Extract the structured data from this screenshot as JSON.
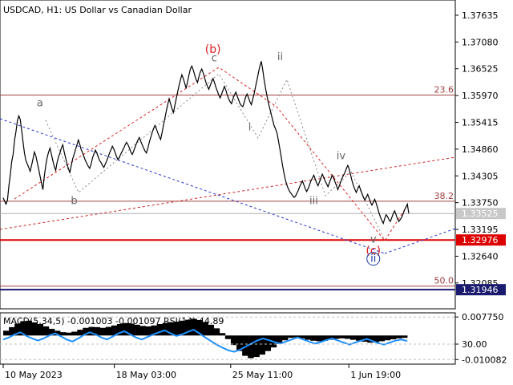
{
  "header": {
    "symbol": "USDCAD",
    "timeframe": "H1:",
    "description": "US Dollar vs Canadian Dollar"
  },
  "chart_data": {
    "type": "line",
    "title": "USDCAD, H1:  US Dollar vs Canadian Dollar",
    "price_axis": {
      "range": [
        1.3155,
        1.3795
      ],
      "ticks": [
        "1.37635",
        "1.37080",
        "1.36525",
        "1.35970",
        "1.35415",
        "1.34860",
        "1.34305",
        "1.33750",
        "1.33195",
        "1.32640",
        "1.32085"
      ],
      "tick_values": [
        1.37635,
        1.3708,
        1.36525,
        1.3597,
        1.35415,
        1.3486,
        1.34305,
        1.3375,
        1.33195,
        1.3264,
        1.32085
      ]
    },
    "time_axis": {
      "ticks": [
        "10 May 2023",
        "18 May 03:00",
        "25 May 11:00",
        "1 Jun 19:00"
      ],
      "tick_index": [
        0,
        63,
        129,
        196
      ]
    },
    "price_series": {
      "name": "USDCAD",
      "color": "#000000",
      "values": [
        1.3385,
        1.3378,
        1.3372,
        1.338,
        1.341,
        1.3432,
        1.346,
        1.3475,
        1.3505,
        1.3522,
        1.3545,
        1.3555,
        1.3548,
        1.3525,
        1.35,
        1.3478,
        1.3462,
        1.3455,
        1.3448,
        1.344,
        1.3452,
        1.3466,
        1.348,
        1.3472,
        1.3458,
        1.3445,
        1.343,
        1.3415,
        1.3402,
        1.343,
        1.3452,
        1.3468,
        1.348,
        1.3488,
        1.3475,
        1.3462,
        1.345,
        1.3442,
        1.3458,
        1.347,
        1.3478,
        1.3488,
        1.3495,
        1.348,
        1.3468,
        1.3455,
        1.3445,
        1.3438,
        1.3452,
        1.3466,
        1.3475,
        1.3485,
        1.3495,
        1.3505,
        1.3496,
        1.3485,
        1.3478,
        1.347,
        1.3462,
        1.3456,
        1.345,
        1.3446,
        1.3455,
        1.3468,
        1.3476,
        1.3484,
        1.3478,
        1.347,
        1.3462,
        1.3458,
        1.3452,
        1.3448,
        1.3455,
        1.3462,
        1.347,
        1.3478,
        1.3485,
        1.3492,
        1.3486,
        1.3478,
        1.347,
        1.3464,
        1.347,
        1.3476,
        1.3482,
        1.3488,
        1.3495,
        1.35,
        1.3495,
        1.3488,
        1.348,
        1.3475,
        1.3482,
        1.349,
        1.3498,
        1.3505,
        1.351,
        1.3502,
        1.3495,
        1.3488,
        1.3482,
        1.3478,
        1.3488,
        1.35,
        1.351,
        1.352,
        1.3528,
        1.3535,
        1.3528,
        1.352,
        1.3512,
        1.3506,
        1.352,
        1.3535,
        1.355,
        1.3565,
        1.3578,
        1.359,
        1.358,
        1.357,
        1.3562,
        1.3576,
        1.359,
        1.3604,
        1.3618,
        1.363,
        1.364,
        1.3632,
        1.3622,
        1.3612,
        1.3626,
        1.364,
        1.3652,
        1.3658,
        1.365,
        1.364,
        1.363,
        1.3624,
        1.3636,
        1.3646,
        1.3652,
        1.3644,
        1.3634,
        1.3624,
        1.3616,
        1.361,
        1.3618,
        1.3626,
        1.3632,
        1.3624,
        1.3614,
        1.3606,
        1.3598,
        1.3592,
        1.36,
        1.3608,
        1.3616,
        1.3608,
        1.3598,
        1.359,
        1.3584,
        1.358,
        1.359,
        1.3598,
        1.3604,
        1.3596,
        1.3588,
        1.358,
        1.3576,
        1.3574,
        1.3584,
        1.3594,
        1.36,
        1.3592,
        1.3584,
        1.3578,
        1.359,
        1.3602,
        1.3616,
        1.363,
        1.3645,
        1.3658,
        1.3668,
        1.365,
        1.363,
        1.3612,
        1.3596,
        1.3582,
        1.357,
        1.3558,
        1.3546,
        1.3535,
        1.3528,
        1.352,
        1.3505,
        1.3488,
        1.347,
        1.3452,
        1.3436,
        1.3422,
        1.3412,
        1.3404,
        1.3398,
        1.3394,
        1.339,
        1.3386,
        1.3388,
        1.3394,
        1.34,
        1.3408,
        1.3414,
        1.342,
        1.3412,
        1.3404,
        1.3398,
        1.3404,
        1.3412,
        1.342,
        1.3426,
        1.3432,
        1.3424,
        1.3416,
        1.341,
        1.3418,
        1.3426,
        1.3434,
        1.3428,
        1.342,
        1.3414,
        1.3408,
        1.3416,
        1.3424,
        1.3432,
        1.3426,
        1.3418,
        1.341,
        1.3402,
        1.341,
        1.3418,
        1.3426,
        1.3432,
        1.3438,
        1.3446,
        1.3452,
        1.3444,
        1.3432,
        1.342,
        1.341,
        1.3402,
        1.3396,
        1.3404,
        1.341,
        1.3402,
        1.3394,
        1.3386,
        1.338,
        1.3386,
        1.3392,
        1.3384,
        1.3376,
        1.337,
        1.3376,
        1.3382,
        1.3374,
        1.3364,
        1.3354,
        1.3345,
        1.3338,
        1.3332,
        1.3342,
        1.335,
        1.3346,
        1.334,
        1.3336,
        1.3344,
        1.3352,
        1.3358,
        1.335,
        1.3342,
        1.3336,
        1.334,
        1.3345,
        1.3352,
        1.336,
        1.3366,
        1.3372,
        1.33525
      ]
    },
    "current_price": {
      "value": 1.33525,
      "label": "1.33525"
    },
    "levels": [
      {
        "label": "1.32976",
        "value": 1.32976,
        "color": "#dd0000"
      },
      {
        "label": "1.31946",
        "value": 1.31946,
        "color": "#1a1a6e"
      }
    ],
    "fib_levels": [
      {
        "label": "23.6",
        "value": 1.3598
      },
      {
        "label": "38.2",
        "value": 1.3378
      },
      {
        "label": "50.0",
        "value": 1.3202
      }
    ],
    "wave_labels": [
      {
        "text": "a",
        "index": 58,
        "price": 1.3575,
        "color": "#666666"
      },
      {
        "text": "b",
        "index": 112,
        "price": 1.3372,
        "color": "#666666"
      },
      {
        "text": "(b)",
        "index": 331,
        "price": 1.3685,
        "color": "#dd2222"
      },
      {
        "text": "c",
        "index": 333,
        "price": 1.3668,
        "color": "#666666"
      },
      {
        "text": "ii",
        "index": 437,
        "price": 1.367,
        "color": "#666666"
      },
      {
        "text": "i",
        "index": 389,
        "price": 1.3525,
        "color": "#666666"
      },
      {
        "text": "iv",
        "index": 533,
        "price": 1.3465,
        "color": "#666666"
      },
      {
        "text": "iii",
        "index": 490,
        "price": 1.3372,
        "color": "#666666"
      },
      {
        "text": "v",
        "index": 584,
        "price": 1.3292,
        "color": "#666666"
      },
      {
        "text": "(c)",
        "index": 584,
        "price": 1.3268,
        "color": "#dd2222"
      },
      {
        "text": "ii",
        "index": 584,
        "price": 1.3252,
        "color": "#1a3aa0"
      }
    ],
    "macd": {
      "label": "MACD(5,34,5) -0.001003 -0.001097 RSI(14) 44.89",
      "axis_range": [
        -0.012,
        0.0095
      ],
      "ticks": [
        "0.007750",
        "30.00",
        "-0.010082"
      ],
      "tick_values": [
        0.00775,
        -0.0036,
        -0.010082
      ],
      "histogram": [
        0.002,
        0.0035,
        0.005,
        0.006,
        0.0062,
        0.0055,
        0.0048,
        0.0038,
        0.0028,
        0.002,
        0.0014,
        0.0012,
        0.0016,
        0.0024,
        0.0032,
        0.0036,
        0.0035,
        0.0032,
        0.0036,
        0.0042,
        0.0048,
        0.0052,
        0.005,
        0.0045,
        0.004,
        0.0038,
        0.0042,
        0.0048,
        0.0053,
        0.0056,
        0.0058,
        0.0062,
        0.0066,
        0.007,
        0.0065,
        0.0055,
        0.0045,
        0.003,
        0.001,
        -0.0015,
        -0.004,
        -0.0065,
        -0.0085,
        -0.0095,
        -0.009,
        -0.008,
        -0.0065,
        -0.005,
        -0.0035,
        -0.002,
        -0.001,
        -0.0008,
        -0.0012,
        -0.0018,
        -0.0022,
        -0.0024,
        -0.0022,
        -0.0018,
        -0.0014,
        -0.0012,
        -0.0014,
        -0.0018,
        -0.0022,
        -0.0026,
        -0.003,
        -0.0028,
        -0.0024,
        -0.002,
        -0.0016,
        -0.0012,
        -0.001
      ],
      "signal_line": [
        48,
        52,
        58,
        62,
        55,
        50,
        46,
        50,
        56,
        60,
        54,
        48,
        44,
        50,
        57,
        62,
        58,
        52,
        48,
        54,
        60,
        64,
        58,
        52,
        48,
        53,
        58,
        62,
        66,
        60,
        55,
        58,
        63,
        67,
        60,
        52,
        45,
        38,
        32,
        27,
        24,
        28,
        34,
        40,
        46,
        50,
        47,
        43,
        40,
        44,
        48,
        52,
        48,
        44,
        40,
        43,
        47,
        50,
        46,
        42,
        38,
        42,
        46,
        49,
        45,
        41,
        38,
        42,
        46,
        48,
        45
      ]
    }
  }
}
